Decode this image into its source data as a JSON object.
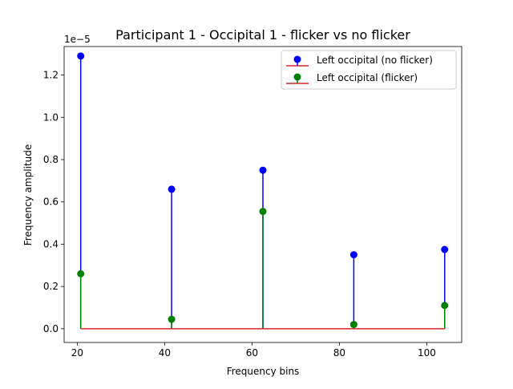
{
  "chart_data": {
    "type": "stem",
    "title": "Participant 1 - Occipital 1 - flicker vs no flicker",
    "xlabel": "Frequency bins",
    "ylabel": "Frequency amplitude",
    "y_offset_label": "1e−5",
    "xlim": [
      17,
      108
    ],
    "ylim": [
      -0.065,
      1.335
    ],
    "xticks": [
      20,
      40,
      60,
      80,
      100
    ],
    "yticks": [
      0.0,
      0.2,
      0.4,
      0.6,
      0.8,
      1.0,
      1.2
    ],
    "xtick_labels": [
      "20",
      "40",
      "60",
      "80",
      "100"
    ],
    "ytick_labels": [
      "0.0",
      "0.2",
      "0.4",
      "0.6",
      "0.8",
      "1.0",
      "1.2"
    ],
    "x": [
      20.8,
      41.6,
      62.5,
      83.3,
      104.1
    ],
    "baseline": 0,
    "legend_position": "upper-right",
    "series": [
      {
        "name": "Left occipital (no flicker)",
        "color": "#0000ff",
        "values": [
          1.29,
          0.66,
          0.75,
          0.35,
          0.375
        ]
      },
      {
        "name": "Left occipital (flicker)",
        "color": "#008000",
        "values": [
          0.26,
          0.045,
          0.555,
          0.02,
          0.11
        ]
      }
    ],
    "baseline_color": "#d62728"
  }
}
